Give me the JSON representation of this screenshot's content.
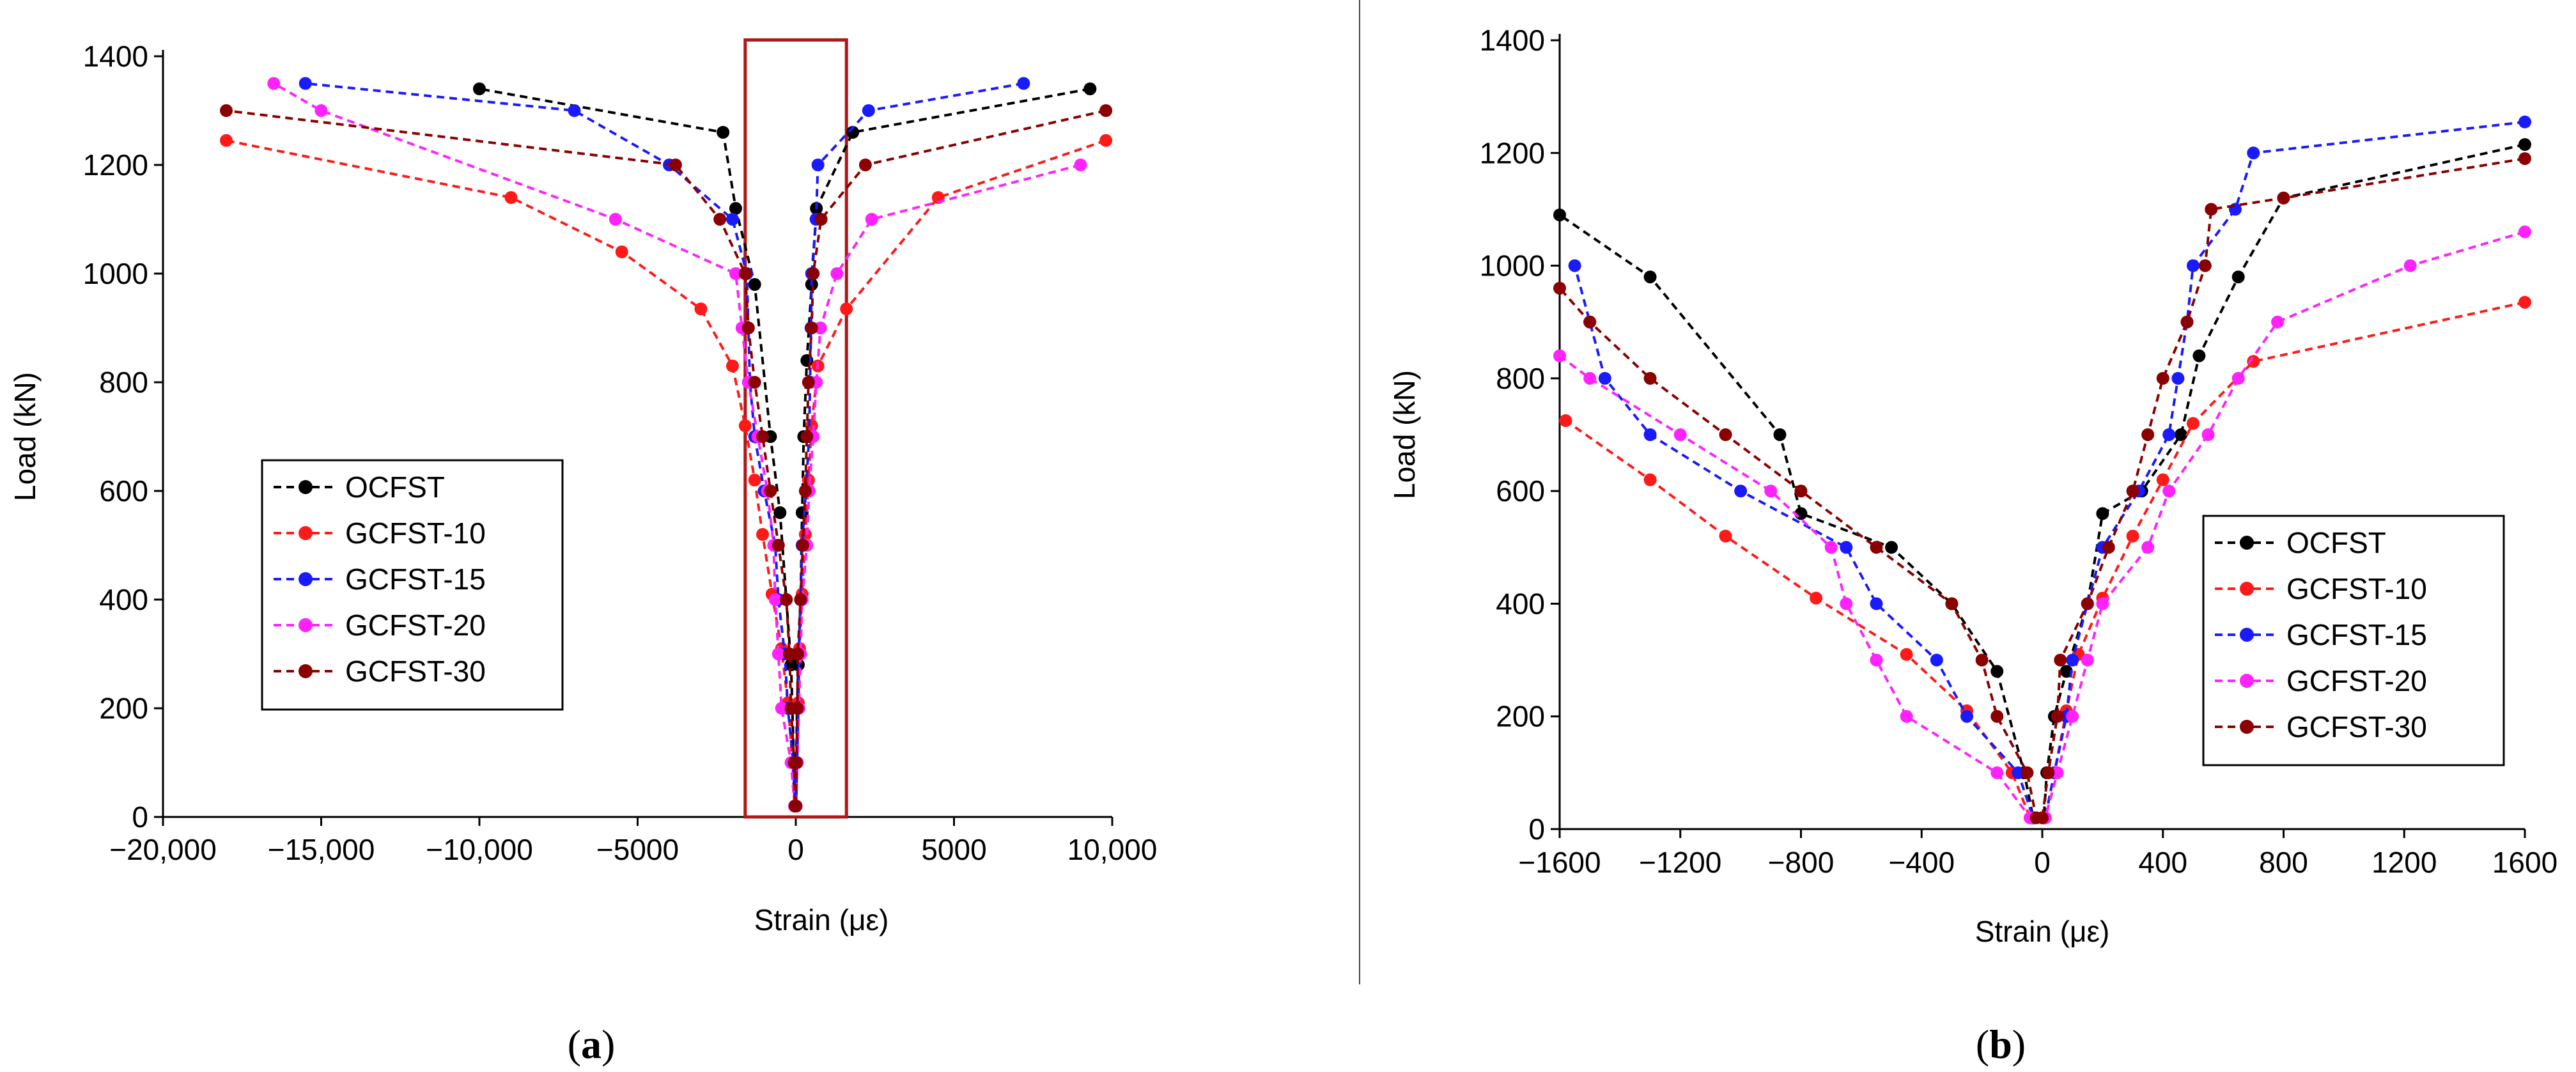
{
  "figure": {
    "panels": [
      {
        "label_open": "(",
        "label_letter": "a",
        "label_close": ")"
      },
      {
        "label_open": "(",
        "label_letter": "b",
        "label_close": ")"
      }
    ]
  },
  "colors": {
    "OCFST": "#000000",
    "GCFST-10": "#ff1a1a",
    "GCFST-15": "#1a1aff",
    "GCFST-20": "#ff22ff",
    "GCFST-30": "#8b0000",
    "zoom_box": "#b01818",
    "axis": "#000000",
    "divider": "#444444"
  },
  "chart_data": [
    {
      "type": "line",
      "title": "",
      "xlabel": "Strain (με)",
      "ylabel": "Load (kN)",
      "xlim": [
        -20000,
        10000
      ],
      "ylim": [
        0,
        1400
      ],
      "xticks": [
        -20000,
        -15000,
        -10000,
        -5000,
        0,
        5000,
        10000
      ],
      "xtick_labels": [
        "−20,000",
        "−15,000",
        "−10,000",
        "−5000",
        "0",
        "5000",
        "10,000"
      ],
      "yticks": [
        0,
        200,
        400,
        600,
        800,
        1000,
        1200,
        1400
      ],
      "ytick_labels": [
        "0",
        "200",
        "400",
        "600",
        "800",
        "1000",
        "1200",
        "1400"
      ],
      "legend_position": "center-left",
      "annotation": "zoom box around x from -1600 to 1600",
      "zoom_box_x": [
        -1600,
        1600
      ],
      "zoom_box_y": [
        0,
        1430
      ],
      "series": [
        {
          "name": "OCFST",
          "color_key": "OCFST",
          "points": [
            [
              9300,
              1340
            ],
            [
              1800,
              1260
            ],
            [
              650,
              1120
            ],
            [
              500,
              980
            ],
            [
              350,
              840
            ],
            [
              250,
              700
            ],
            [
              200,
              560
            ],
            [
              150,
              400
            ],
            [
              80,
              280
            ],
            [
              40,
              200
            ],
            [
              15,
              100
            ],
            [
              5,
              20
            ],
            [
              -30,
              20
            ],
            [
              -60,
              100
            ],
            [
              -150,
              280
            ],
            [
              -300,
              400
            ],
            [
              -500,
              560
            ],
            [
              -800,
              700
            ],
            [
              -1300,
              980
            ],
            [
              -1900,
              1120
            ],
            [
              -2300,
              1260
            ],
            [
              -10000,
              1340
            ]
          ]
        },
        {
          "name": "GCFST-10",
          "color_key": "GCFST-10",
          "points": [
            [
              9800,
              1245
            ],
            [
              4500,
              1140
            ],
            [
              1600,
              935
            ],
            [
              700,
              830
            ],
            [
              500,
              720
            ],
            [
              400,
              620
            ],
            [
              300,
              520
            ],
            [
              200,
              410
            ],
            [
              120,
              310
            ],
            [
              80,
              210
            ],
            [
              40,
              100
            ],
            [
              10,
              20
            ],
            [
              -40,
              20
            ],
            [
              -100,
              100
            ],
            [
              -250,
              210
            ],
            [
              -450,
              310
            ],
            [
              -750,
              410
            ],
            [
              -1050,
              520
            ],
            [
              -1300,
              620
            ],
            [
              -1600,
              720
            ],
            [
              -2000,
              830
            ],
            [
              -3000,
              935
            ],
            [
              -5500,
              1040
            ],
            [
              -9000,
              1140
            ],
            [
              -18000,
              1245
            ]
          ]
        },
        {
          "name": "GCFST-15",
          "color_key": "GCFST-15",
          "points": [
            [
              7200,
              1350
            ],
            [
              2300,
              1300
            ],
            [
              700,
              1200
            ],
            [
              640,
              1100
            ],
            [
              500,
              1000
            ],
            [
              480,
              900
            ],
            [
              450,
              800
            ],
            [
              420,
              700
            ],
            [
              320,
              600
            ],
            [
              200,
              500
            ],
            [
              150,
              400
            ],
            [
              100,
              300
            ],
            [
              80,
              200
            ],
            [
              40,
              100
            ],
            [
              10,
              20
            ],
            [
              -30,
              20
            ],
            [
              -80,
              100
            ],
            [
              -250,
              200
            ],
            [
              -350,
              300
            ],
            [
              -550,
              400
            ],
            [
              -650,
              500
            ],
            [
              -1000,
              600
            ],
            [
              -1300,
              700
            ],
            [
              -1450,
              800
            ],
            [
              -1500,
              900
            ],
            [
              -1550,
              1000
            ],
            [
              -2000,
              1100
            ],
            [
              -4000,
              1200
            ],
            [
              -7000,
              1300
            ],
            [
              -15500,
              1350
            ]
          ]
        },
        {
          "name": "GCFST-20",
          "color_key": "GCFST-20",
          "points": [
            [
              9000,
              1200
            ],
            [
              2400,
              1100
            ],
            [
              1300,
              1000
            ],
            [
              780,
              900
            ],
            [
              650,
              800
            ],
            [
              550,
              700
            ],
            [
              420,
              600
            ],
            [
              350,
              500
            ],
            [
              200,
              400
            ],
            [
              150,
              300
            ],
            [
              100,
              200
            ],
            [
              50,
              100
            ],
            [
              10,
              20
            ],
            [
              -40,
              20
            ],
            [
              -150,
              100
            ],
            [
              -450,
              200
            ],
            [
              -550,
              300
            ],
            [
              -650,
              400
            ],
            [
              -700,
              500
            ],
            [
              -900,
              600
            ],
            [
              -1200,
              700
            ],
            [
              -1500,
              800
            ],
            [
              -1700,
              900
            ],
            [
              -1900,
              1000
            ],
            [
              -5700,
              1100
            ],
            [
              -15000,
              1300
            ],
            [
              -16500,
              1350
            ]
          ]
        },
        {
          "name": "GCFST-30",
          "color_key": "GCFST-30",
          "points": [
            [
              9800,
              1300
            ],
            [
              2200,
              1200
            ],
            [
              800,
              1100
            ],
            [
              550,
              1000
            ],
            [
              500,
              900
            ],
            [
              400,
              800
            ],
            [
              350,
              700
            ],
            [
              300,
              600
            ],
            [
              220,
              500
            ],
            [
              150,
              400
            ],
            [
              60,
              300
            ],
            [
              50,
              200
            ],
            [
              20,
              100
            ],
            [
              0,
              20
            ],
            [
              -20,
              20
            ],
            [
              -50,
              100
            ],
            [
              -150,
              200
            ],
            [
              -200,
              300
            ],
            [
              -300,
              400
            ],
            [
              -550,
              500
            ],
            [
              -800,
              600
            ],
            [
              -1050,
              700
            ],
            [
              -1300,
              800
            ],
            [
              -1500,
              900
            ],
            [
              -1600,
              1000
            ],
            [
              -2400,
              1100
            ],
            [
              -3800,
              1200
            ],
            [
              -18000,
              1300
            ]
          ]
        }
      ]
    },
    {
      "type": "line",
      "title": "",
      "xlabel": "Strain (με)",
      "ylabel": "Load (kN)",
      "xlim": [
        -1600,
        1600
      ],
      "ylim": [
        0,
        1400
      ],
      "xticks": [
        -1600,
        -1200,
        -800,
        -400,
        0,
        400,
        800,
        1200,
        1600
      ],
      "xtick_labels": [
        "−1600",
        "−1200",
        "−800",
        "−400",
        "0",
        "400",
        "800",
        "1200",
        "1600"
      ],
      "yticks": [
        0,
        200,
        400,
        600,
        800,
        1000,
        1200,
        1400
      ],
      "ytick_labels": [
        "0",
        "200",
        "400",
        "600",
        "800",
        "1000",
        "1200",
        "1400"
      ],
      "legend_position": "bottom-right",
      "series": [
        {
          "name": "OCFST",
          "color_key": "OCFST",
          "points": [
            [
              1600,
              1215
            ],
            [
              800,
              1120
            ],
            [
              650,
              980
            ],
            [
              520,
              840
            ],
            [
              460,
              700
            ],
            [
              330,
              600
            ],
            [
              200,
              560
            ],
            [
              150,
              400
            ],
            [
              80,
              280
            ],
            [
              40,
              200
            ],
            [
              15,
              100
            ],
            [
              5,
              20
            ],
            [
              -30,
              20
            ],
            [
              -60,
              100
            ],
            [
              -150,
              280
            ],
            [
              -300,
              400
            ],
            [
              -500,
              500
            ],
            [
              -800,
              560
            ],
            [
              -870,
              700
            ],
            [
              -1300,
              980
            ],
            [
              -1600,
              1090
            ]
          ]
        },
        {
          "name": "GCFST-10",
          "color_key": "GCFST-10",
          "points": [
            [
              1600,
              935
            ],
            [
              700,
              830
            ],
            [
              500,
              720
            ],
            [
              400,
              620
            ],
            [
              300,
              520
            ],
            [
              200,
              410
            ],
            [
              120,
              310
            ],
            [
              80,
              210
            ],
            [
              40,
              100
            ],
            [
              10,
              20
            ],
            [
              -40,
              20
            ],
            [
              -100,
              100
            ],
            [
              -250,
              210
            ],
            [
              -450,
              310
            ],
            [
              -750,
              410
            ],
            [
              -1050,
              520
            ],
            [
              -1300,
              620
            ],
            [
              -1580,
              725
            ]
          ]
        },
        {
          "name": "GCFST-15",
          "color_key": "GCFST-15",
          "points": [
            [
              1600,
              1255
            ],
            [
              700,
              1200
            ],
            [
              640,
              1100
            ],
            [
              500,
              1000
            ],
            [
              480,
              900
            ],
            [
              450,
              800
            ],
            [
              420,
              700
            ],
            [
              320,
              600
            ],
            [
              200,
              500
            ],
            [
              150,
              400
            ],
            [
              100,
              300
            ],
            [
              80,
              200
            ],
            [
              40,
              100
            ],
            [
              10,
              20
            ],
            [
              -30,
              20
            ],
            [
              -80,
              100
            ],
            [
              -250,
              200
            ],
            [
              -350,
              300
            ],
            [
              -550,
              400
            ],
            [
              -650,
              500
            ],
            [
              -1000,
              600
            ],
            [
              -1300,
              700
            ],
            [
              -1450,
              800
            ],
            [
              -1500,
              900
            ],
            [
              -1550,
              1000
            ]
          ]
        },
        {
          "name": "GCFST-20",
          "color_key": "GCFST-20",
          "points": [
            [
              1600,
              1060
            ],
            [
              1220,
              1000
            ],
            [
              780,
              900
            ],
            [
              650,
              800
            ],
            [
              550,
              700
            ],
            [
              420,
              600
            ],
            [
              350,
              500
            ],
            [
              200,
              400
            ],
            [
              150,
              300
            ],
            [
              100,
              200
            ],
            [
              50,
              100
            ],
            [
              10,
              20
            ],
            [
              -40,
              20
            ],
            [
              -150,
              100
            ],
            [
              -450,
              200
            ],
            [
              -550,
              300
            ],
            [
              -650,
              400
            ],
            [
              -700,
              500
            ],
            [
              -900,
              600
            ],
            [
              -1200,
              700
            ],
            [
              -1500,
              800
            ],
            [
              -1600,
              840
            ]
          ]
        },
        {
          "name": "GCFST-30",
          "color_key": "GCFST-30",
          "points": [
            [
              1600,
              1190
            ],
            [
              800,
              1120
            ],
            [
              560,
              1100
            ],
            [
              540,
              1000
            ],
            [
              480,
              900
            ],
            [
              400,
              800
            ],
            [
              350,
              700
            ],
            [
              300,
              600
            ],
            [
              220,
              500
            ],
            [
              150,
              400
            ],
            [
              60,
              300
            ],
            [
              50,
              200
            ],
            [
              20,
              100
            ],
            [
              0,
              20
            ],
            [
              -20,
              20
            ],
            [
              -50,
              100
            ],
            [
              -150,
              200
            ],
            [
              -200,
              300
            ],
            [
              -300,
              400
            ],
            [
              -550,
              500
            ],
            [
              -800,
              600
            ],
            [
              -1050,
              700
            ],
            [
              -1300,
              800
            ],
            [
              -1500,
              900
            ],
            [
              -1600,
              960
            ]
          ]
        }
      ]
    }
  ]
}
